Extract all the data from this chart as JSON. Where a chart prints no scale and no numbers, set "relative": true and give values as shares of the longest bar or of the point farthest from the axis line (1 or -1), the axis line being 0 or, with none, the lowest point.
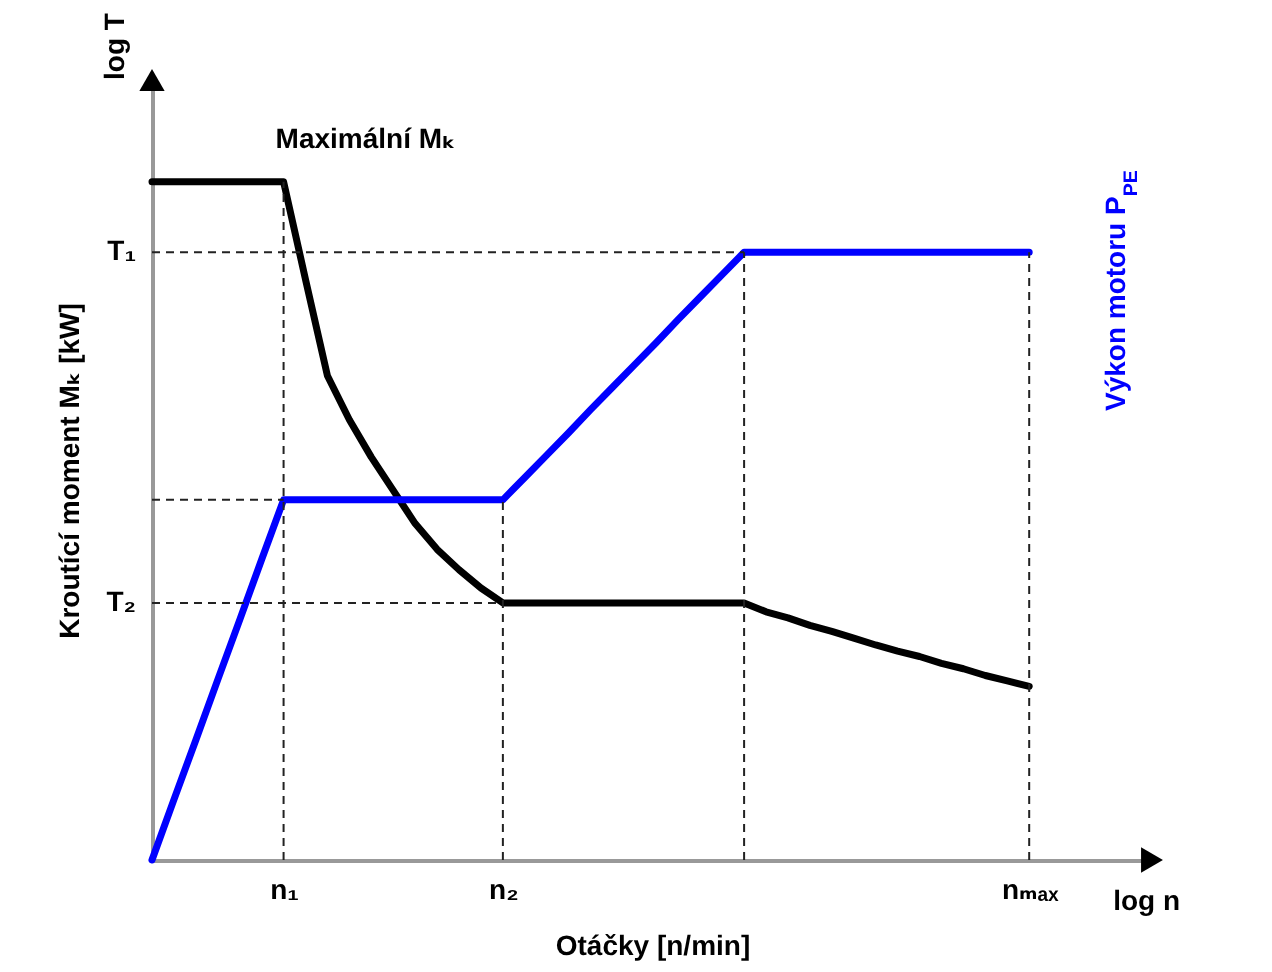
{
  "chart_data": {
    "type": "line",
    "relative": true,
    "xlabel": "Otáčky [n/min]",
    "ylabel": "Kroutící moment Mₖ [kW]",
    "y2label": "Výkon motoru P$_{PE}$",
    "categories": [
      null,
      null,
      null,
      null,
      null,
      null,
      "n₁",
      null,
      null,
      null,
      null,
      null,
      null,
      null,
      null,
      null,
      "n₂",
      null,
      null,
      null,
      null,
      null,
      null,
      null,
      null,
      null,
      null,
      null,
      null,
      null,
      null,
      null,
      null,
      null,
      null,
      null,
      null,
      null,
      null,
      null,
      "nₘₐₓ"
    ],
    "grid": "x",
    "series": [
      {
        "color": "#000000",
        "values": [
          1,
          1,
          1,
          1,
          1,
          1,
          1,
          0.856,
          0.714,
          0.649,
          0.594,
          0.545,
          0.496,
          0.458,
          0.428,
          0.401,
          0.379,
          0.379,
          0.379,
          0.379,
          0.379,
          0.379,
          0.379,
          0.379,
          0.379,
          0.379,
          0.379,
          0.379,
          0.366,
          0.357,
          0.346,
          0.337,
          0.327,
          0.317,
          0.308,
          0.3,
          0.29,
          0.282,
          0.272,
          0.264,
          0.256
        ]
      },
      {
        "color": "#0000ff",
        "values": [
          0,
          0.089,
          0.177,
          0.266,
          0.354,
          0.443,
          0.531,
          0.531,
          0.531,
          0.531,
          0.531,
          0.531,
          0.531,
          0.531,
          0.531,
          0.531,
          0.531,
          0.564,
          0.597,
          0.63,
          0.664,
          0.697,
          0.73,
          0.763,
          0.797,
          0.83,
          0.863,
          0.896,
          0.896,
          0.896,
          0.896,
          0.896,
          0.896,
          0.896,
          0.896,
          0.896,
          0.896,
          0.896,
          0.896,
          0.896,
          0.896
        ]
      }
    ],
    "ref_lines": [
      {
        "axis": "y",
        "value": 0.896,
        "label": "T₁",
        "line_style": "dashed"
      },
      {
        "axis": "y",
        "value": 0.531,
        "line_style": "dashed"
      },
      {
        "axis": "y",
        "value": 0.379,
        "label": "T₂",
        "line_style": "dashed"
      }
    ],
    "annotations": [
      "log T",
      "log n",
      {
        "text": "Maximální Mₖ",
        "x": "n₁",
        "y": 1
      }
    ]
  }
}
